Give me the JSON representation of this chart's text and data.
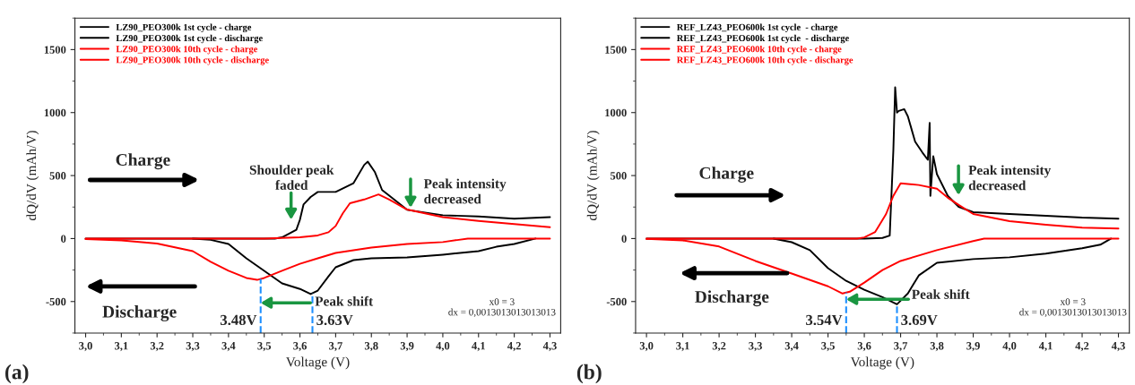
{
  "chart_data": [
    {
      "type": "line",
      "xlabel": "Voltage (V)",
      "ylabel": "dQ/dV (mAh/V)",
      "xlim": [
        2.97,
        4.33
      ],
      "ylim": [
        -750,
        1750
      ],
      "xticks": [
        {
          "value": 3.0,
          "label": "3,0"
        },
        {
          "value": 3.1,
          "label": "3,1"
        },
        {
          "value": 3.2,
          "label": "3,2"
        },
        {
          "value": 3.3,
          "label": "3,3"
        },
        {
          "value": 3.4,
          "label": "3,4"
        },
        {
          "value": 3.5,
          "label": "3,5"
        },
        {
          "value": 3.6,
          "label": "3,6"
        },
        {
          "value": 3.7,
          "label": "3,7"
        },
        {
          "value": 3.8,
          "label": "3,8"
        },
        {
          "value": 3.9,
          "label": "3,9"
        },
        {
          "value": 4.0,
          "label": "4,0"
        },
        {
          "value": 4.1,
          "label": "4,1"
        },
        {
          "value": 4.2,
          "label": "4,2"
        },
        {
          "value": 4.3,
          "label": "4,3"
        }
      ],
      "yticks": [
        -500,
        0,
        500,
        1000,
        1500
      ],
      "grid": false,
      "legend": "top left",
      "series": [
        {
          "name": "LZ90_PEO300k 1st cycle - charge",
          "color": "#000000",
          "x": [
            3.0,
            3.2,
            3.4,
            3.53,
            3.55,
            3.57,
            3.59,
            3.6,
            3.61,
            3.63,
            3.65,
            3.7,
            3.75,
            3.78,
            3.79,
            3.81,
            3.83,
            3.85,
            3.9,
            4.0,
            4.1,
            4.2,
            4.3
          ],
          "values": [
            0,
            0,
            0,
            0,
            10,
            40,
            70,
            150,
            270,
            330,
            370,
            370,
            440,
            585,
            610,
            527,
            385,
            340,
            228,
            185,
            175,
            157,
            170
          ]
        },
        {
          "name": "LZ90_PEO300k 1st cycle - discharge",
          "color": "#000000",
          "x": [
            3.3,
            3.35,
            3.4,
            3.45,
            3.5,
            3.55,
            3.6,
            3.63,
            3.65,
            3.68,
            3.7,
            3.75,
            3.8,
            3.9,
            4.0,
            4.1,
            4.15,
            4.2,
            4.26
          ],
          "values": [
            0,
            -10,
            -43,
            -157,
            -256,
            -356,
            -400,
            -441,
            -413,
            -300,
            -228,
            -171,
            -157,
            -150,
            -128,
            -100,
            -65,
            -43,
            0
          ]
        },
        {
          "name": "LZ90_PEO300k 10th cycle - charge",
          "color": "#ff0000",
          "x": [
            3.0,
            3.2,
            3.4,
            3.5,
            3.6,
            3.65,
            3.68,
            3.7,
            3.72,
            3.74,
            3.78,
            3.82,
            3.85,
            3.9,
            4.0,
            4.1,
            4.2,
            4.3
          ],
          "values": [
            0,
            0,
            0,
            0,
            10,
            25,
            50,
            100,
            200,
            280,
            310,
            350,
            310,
            230,
            170,
            140,
            115,
            90
          ]
        },
        {
          "name": "LZ90_PEO300k 10th cycle - discharge",
          "color": "#ff0000",
          "x": [
            3.0,
            3.1,
            3.2,
            3.3,
            3.35,
            3.4,
            3.45,
            3.48,
            3.5,
            3.55,
            3.6,
            3.65,
            3.7,
            3.8,
            3.9,
            4.0,
            4.07,
            4.2,
            4.3
          ],
          "values": [
            -5,
            -15,
            -40,
            -100,
            -185,
            -256,
            -313,
            -328,
            -313,
            -256,
            -200,
            -157,
            -114,
            -71,
            -43,
            -28,
            0,
            0,
            0
          ]
        }
      ],
      "ref_lines": [
        {
          "axis": "x",
          "value": 3.49,
          "label": "3.48V",
          "color": "#1e90ff",
          "line_style": "dashed"
        },
        {
          "axis": "x",
          "value": 3.635,
          "label": "3.63V",
          "color": "#1e90ff",
          "line_style": "dashed"
        }
      ],
      "annotations": [
        "Charge",
        "Discharge",
        "Shoulder peak\nfaded",
        "Peak intensity\ndecreased",
        {
          "text": "Peak shift",
          "x": 3.49,
          "y": -510
        },
        "x0 = 3\ndx = 0,0013013013013013",
        "(a)"
      ]
    },
    {
      "type": "line",
      "xlabel": "Voltage (V)",
      "ylabel": "dQ/dV (mAh/V)",
      "xlim": [
        2.97,
        4.33
      ],
      "ylim": [
        -750,
        1750
      ],
      "xticks": [
        {
          "value": 3.0,
          "label": "3,0"
        },
        {
          "value": 3.1,
          "label": "3,1"
        },
        {
          "value": 3.2,
          "label": "3,2"
        },
        {
          "value": 3.3,
          "label": "3,3"
        },
        {
          "value": 3.4,
          "label": "3,4"
        },
        {
          "value": 3.5,
          "label": "3,5"
        },
        {
          "value": 3.6,
          "label": "3,6"
        },
        {
          "value": 3.7,
          "label": "3,7"
        },
        {
          "value": 3.8,
          "label": "3,8"
        },
        {
          "value": 3.9,
          "label": "3,9"
        },
        {
          "value": 4.0,
          "label": "4,0"
        },
        {
          "value": 4.1,
          "label": "4,1"
        },
        {
          "value": 4.2,
          "label": "4,2"
        },
        {
          "value": 4.3,
          "label": "4,3"
        }
      ],
      "yticks": [
        -500,
        0,
        500,
        1000,
        1500
      ],
      "grid": false,
      "legend": "top left",
      "series": [
        {
          "name": "REF_LZ43_PEO600k 1st cycle  - charge",
          "color": "#000000",
          "x": [
            3.0,
            3.3,
            3.6,
            3.65,
            3.67,
            3.68,
            3.685,
            3.69,
            3.695,
            3.71,
            3.72,
            3.74,
            3.76,
            3.775,
            3.78,
            3.782,
            3.79,
            3.8,
            3.83,
            3.86,
            3.9,
            4.0,
            4.1,
            4.2,
            4.3
          ],
          "values": [
            0,
            0,
            0,
            5,
            23,
            700,
            1200,
            1000,
            1013,
            1027,
            970,
            769,
            683,
            625,
            918,
            339,
            654,
            511,
            339,
            252,
            209,
            195,
            181,
            166,
            158
          ]
        },
        {
          "name": "REF_LZ43_PEO600k 1st cycle  - discharge",
          "color": "#000000",
          "x": [
            3.35,
            3.4,
            3.45,
            3.5,
            3.55,
            3.6,
            3.65,
            3.69,
            3.72,
            3.75,
            3.8,
            3.9,
            4.0,
            4.1,
            4.2,
            4.25,
            4.28
          ],
          "values": [
            0,
            -29,
            -92,
            -235,
            -336,
            -407,
            -465,
            -522,
            -436,
            -293,
            -192,
            -163,
            -149,
            -120,
            -77,
            -49,
            0
          ]
        },
        {
          "name": "REF_LZ43_PEO600k 10th cycle - charge",
          "color": "#ff0000",
          "x": [
            3.0,
            3.3,
            3.58,
            3.6,
            3.63,
            3.66,
            3.68,
            3.7,
            3.75,
            3.8,
            3.83,
            3.86,
            3.9,
            4.0,
            4.1,
            4.2,
            4.3
          ],
          "values": [
            0,
            0,
            0,
            9,
            52,
            195,
            339,
            439,
            425,
            396,
            324,
            267,
            195,
            138,
            109,
            86,
            80
          ]
        },
        {
          "name": "REF_LZ43_PEO600k 10th cycle - discharge",
          "color": "#ff0000",
          "x": [
            3.0,
            3.1,
            3.2,
            3.3,
            3.4,
            3.5,
            3.54,
            3.56,
            3.6,
            3.65,
            3.7,
            3.8,
            3.9,
            3.93,
            4.1,
            4.3
          ],
          "values": [
            -3,
            -15,
            -63,
            -178,
            -278,
            -379,
            -436,
            -422,
            -350,
            -250,
            -178,
            -92,
            -20,
            0,
            0,
            0
          ]
        }
      ],
      "ref_lines": [
        {
          "axis": "x",
          "value": 3.55,
          "label": "3.54V",
          "color": "#1e90ff",
          "line_style": "dashed"
        },
        {
          "axis": "x",
          "value": 3.69,
          "label": "3.69V",
          "color": "#1e90ff",
          "line_style": "dashed"
        }
      ],
      "annotations": [
        "Charge",
        "Discharge",
        "Peak intensity\ndecreased",
        {
          "text": "Peak shift",
          "x": 3.55,
          "y": -482
        },
        "x0 = 3\ndx = 0,0013013013013013",
        "(b)"
      ]
    }
  ]
}
